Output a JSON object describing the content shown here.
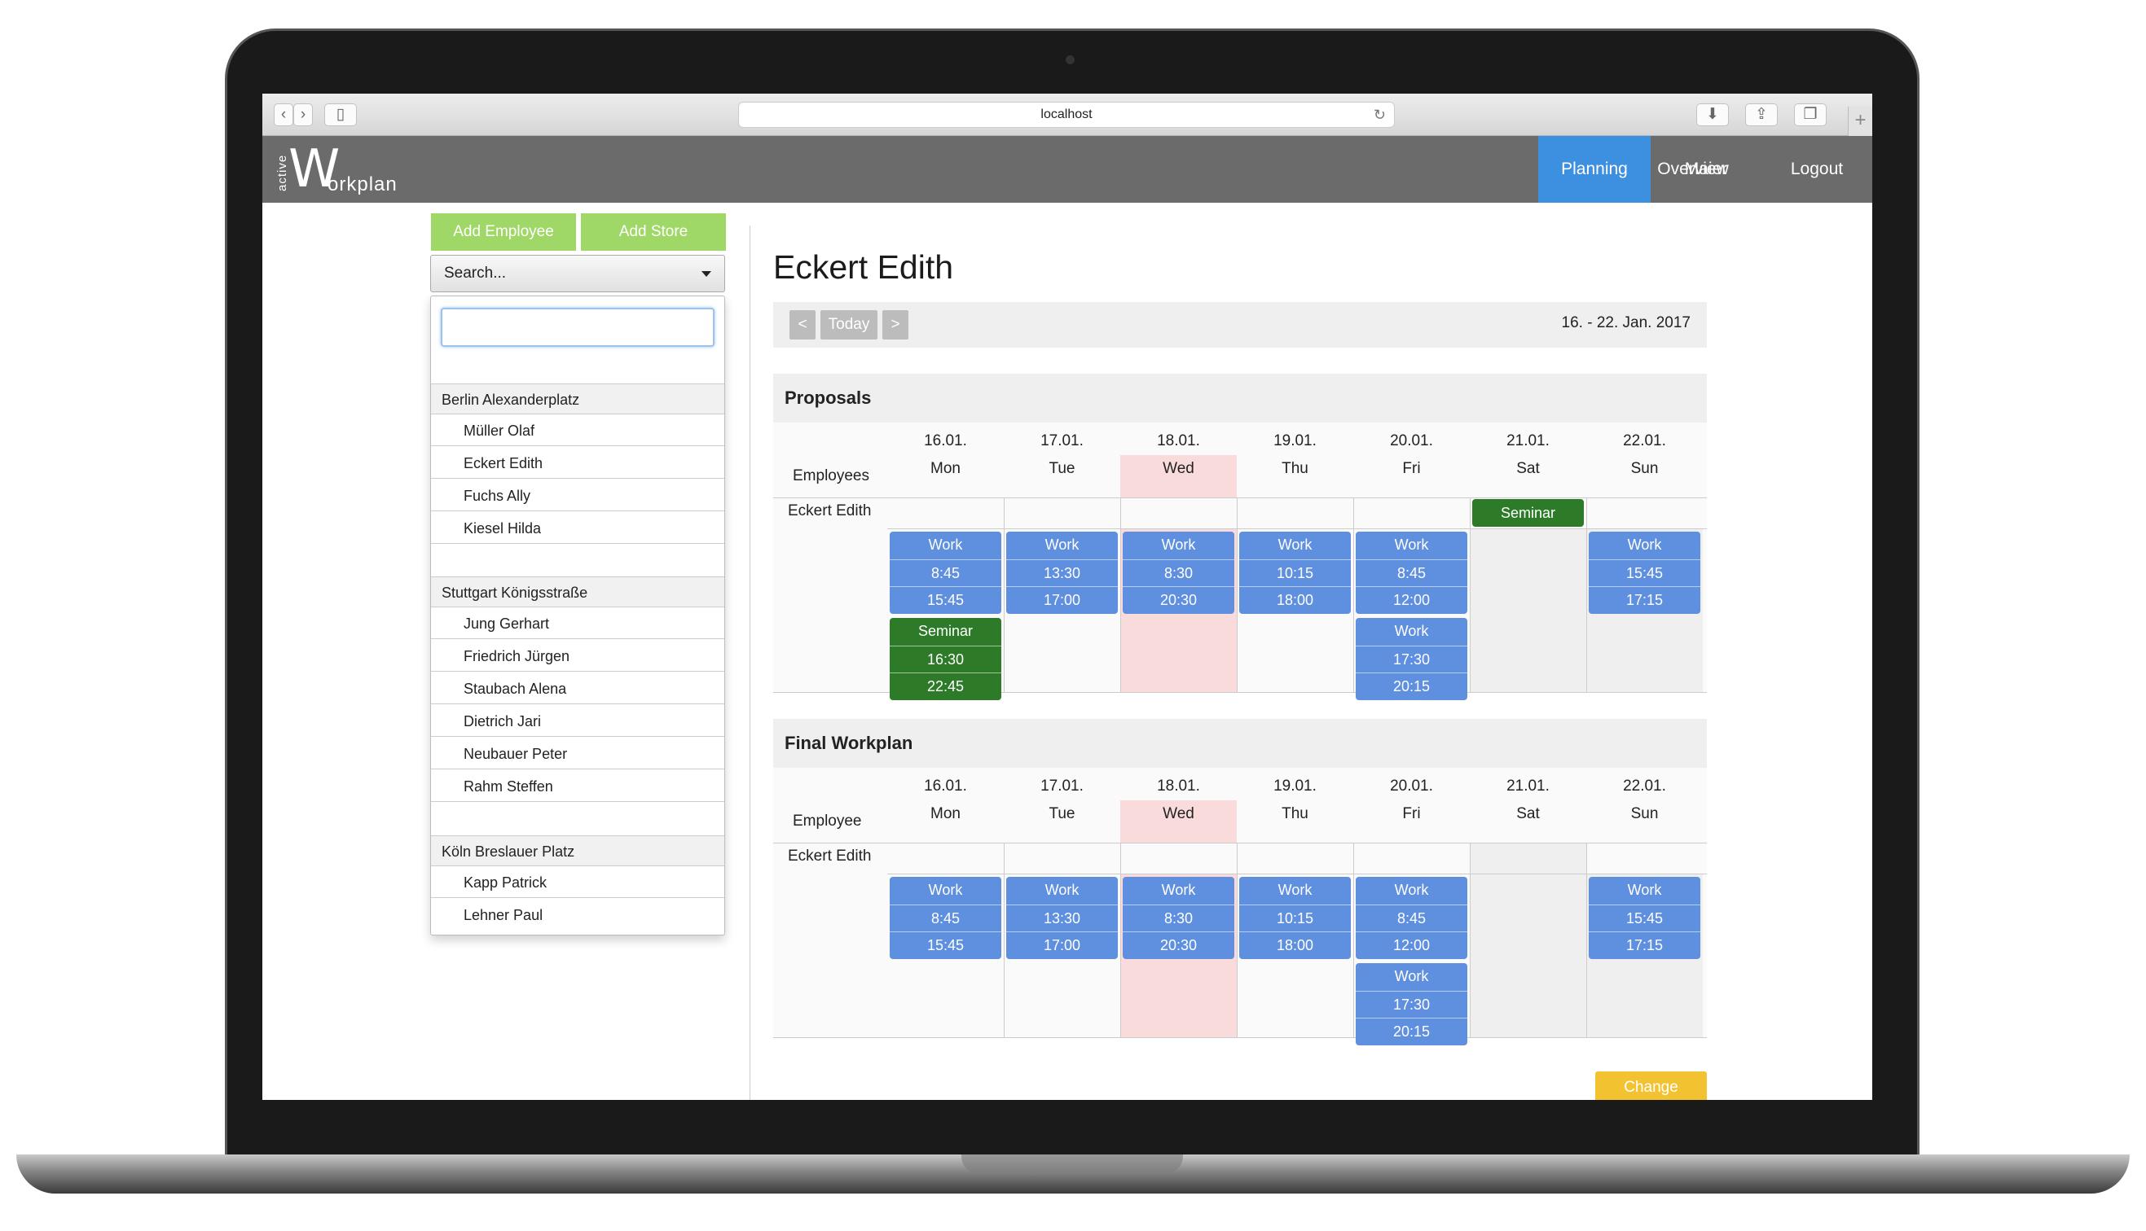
{
  "browser": {
    "url": "localhost"
  },
  "app": {
    "logo_small": "active",
    "logo_big": "W",
    "logo_rest": "orkplan",
    "nav": [
      {
        "label": "Overview"
      },
      {
        "label": "Planning"
      },
      {
        "label": "Maier"
      },
      {
        "label": "Logout"
      }
    ],
    "nav_active_color": "#3d8fe0"
  },
  "sidebar": {
    "add_employee": "Add Employee",
    "add_store": "Add Store",
    "search_placeholder": "Search...",
    "search_value": "",
    "groups": [
      {
        "name": "Berlin Alexanderplatz",
        "items": [
          "Müller Olaf",
          "Eckert Edith",
          "Fuchs Ally",
          "Kiesel Hilda"
        ]
      },
      {
        "name": "Stuttgart Königsstraße",
        "items": [
          "Jung Gerhart",
          "Friedrich Jürgen",
          "Staubach Alena",
          "Dietrich Jari",
          "Neubauer Peter",
          "Rahm Steffen"
        ]
      },
      {
        "name": "Köln Breslauer Platz",
        "items": [
          "Kapp Patrick",
          "Lehner Paul"
        ]
      }
    ]
  },
  "main": {
    "title": "Eckert Edith",
    "prev": "<",
    "today": "Today",
    "next": ">",
    "date_range": "16. - 22. Jan. 2017",
    "days": [
      {
        "date": "16.01.",
        "day": "Mon"
      },
      {
        "date": "17.01.",
        "day": "Tue"
      },
      {
        "date": "18.01.",
        "day": "Wed"
      },
      {
        "date": "19.01.",
        "day": "Thu"
      },
      {
        "date": "20.01.",
        "day": "Fri"
      },
      {
        "date": "21.01.",
        "day": "Sat"
      },
      {
        "date": "22.01.",
        "day": "Sun"
      }
    ],
    "proposals": {
      "title": "Proposals",
      "col_label": "Employees",
      "employee": "Eckert Edith",
      "seminar_sat": "Seminar",
      "shifts": [
        {
          "day": 0,
          "type": "Work",
          "start": "8:45",
          "end": "15:45"
        },
        {
          "day": 1,
          "type": "Work",
          "start": "13:30",
          "end": "17:00"
        },
        {
          "day": 2,
          "type": "Work",
          "start": "8:30",
          "end": "20:30"
        },
        {
          "day": 3,
          "type": "Work",
          "start": "10:15",
          "end": "18:00"
        },
        {
          "day": 4,
          "type": "Work",
          "start": "8:45",
          "end": "12:00"
        },
        {
          "day": 6,
          "type": "Work",
          "start": "15:45",
          "end": "17:15"
        },
        {
          "day": 0,
          "type": "Seminar",
          "start": "16:30",
          "end": "22:45"
        },
        {
          "day": 4,
          "type": "Work",
          "start": "17:30",
          "end": "20:15"
        }
      ]
    },
    "final": {
      "title": "Final Workplan",
      "col_label": "Employee",
      "employee": "Eckert Edith",
      "shifts": [
        {
          "day": 0,
          "type": "Work",
          "start": "8:45",
          "end": "15:45"
        },
        {
          "day": 1,
          "type": "Work",
          "start": "13:30",
          "end": "17:00"
        },
        {
          "day": 2,
          "type": "Work",
          "start": "8:30",
          "end": "20:30"
        },
        {
          "day": 3,
          "type": "Work",
          "start": "10:15",
          "end": "18:00"
        },
        {
          "day": 4,
          "type": "Work",
          "start": "8:45",
          "end": "12:00"
        },
        {
          "day": 6,
          "type": "Work",
          "start": "15:45",
          "end": "17:15"
        },
        {
          "day": 4,
          "type": "Work",
          "start": "17:30",
          "end": "20:15"
        }
      ]
    },
    "change": "Change"
  },
  "colors": {
    "work": "#5f8fdf",
    "seminar": "#2d7a28",
    "today_highlight": "#fadbdb",
    "add_button": "#9fd866",
    "change_button": "#f2c231"
  }
}
